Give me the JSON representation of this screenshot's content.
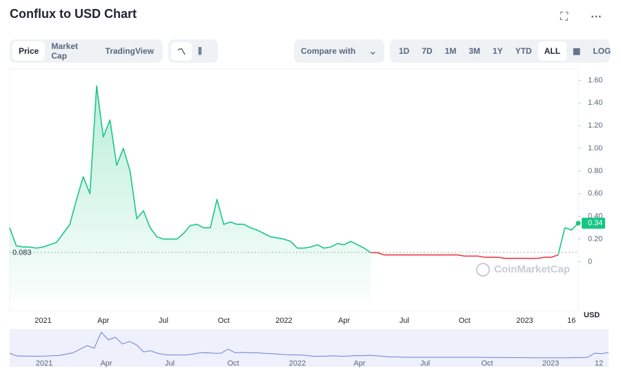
{
  "header": {
    "title": "Conflux to USD Chart"
  },
  "toolbar": {
    "views": [
      "Price",
      "Market Cap",
      "TradingView"
    ],
    "compare": "Compare with",
    "ranges": [
      "1D",
      "7D",
      "1M",
      "3M",
      "1Y",
      "YTD",
      "ALL"
    ],
    "log": "LOG"
  },
  "chart_data": {
    "type": "line",
    "categories": [
      null,
      null,
      null,
      null,
      null,
      "2021",
      null,
      null,
      null,
      null,
      null,
      null,
      null,
      null,
      "Apr",
      null,
      null,
      null,
      null,
      null,
      null,
      null,
      null,
      "Jul",
      null,
      null,
      null,
      null,
      null,
      null,
      null,
      null,
      "Oct",
      null,
      null,
      null,
      null,
      null,
      null,
      null,
      null,
      "2022",
      null,
      null,
      null,
      null,
      null,
      null,
      null,
      null,
      "Apr",
      null,
      null,
      null,
      null,
      null,
      null,
      null,
      null,
      "Jul",
      null,
      null,
      null,
      null,
      null,
      null,
      null,
      null,
      "Oct",
      null,
      null,
      null,
      null,
      null,
      null,
      null,
      null,
      "2023",
      null,
      null,
      null,
      null,
      null,
      null,
      "16",
      null
    ],
    "series": [
      {
        "color": "#16c784",
        "values": [
          0.3,
          0.14,
          0.13,
          0.13,
          0.12,
          0.13,
          0.15,
          0.17,
          0.25,
          0.33,
          0.55,
          0.75,
          0.6,
          1.55,
          1.1,
          1.25,
          0.85,
          1.0,
          0.8,
          0.38,
          0.45,
          0.3,
          0.22,
          0.2,
          0.2,
          0.2,
          0.25,
          0.32,
          0.33,
          0.3,
          0.3,
          0.55,
          0.33,
          0.35,
          0.33,
          0.33,
          0.3,
          0.28,
          0.25,
          0.22,
          0.21,
          0.2,
          0.18,
          0.12,
          0.12,
          0.13,
          0.15,
          0.12,
          0.13,
          0.16,
          0.15,
          0.18,
          0.15,
          0.12,
          0.08,
          null,
          null,
          null,
          null,
          null,
          null,
          null,
          null,
          null,
          null,
          null,
          null,
          null,
          null,
          null,
          null,
          null,
          null,
          null,
          null,
          null,
          null,
          null,
          null,
          null,
          null,
          null,
          0.06,
          0.3,
          0.28,
          0.34
        ]
      },
      {
        "color": "#ea3943",
        "values": [
          null,
          null,
          null,
          null,
          null,
          null,
          null,
          null,
          null,
          null,
          null,
          null,
          null,
          null,
          null,
          null,
          null,
          null,
          null,
          null,
          null,
          null,
          null,
          null,
          null,
          null,
          null,
          null,
          null,
          null,
          null,
          null,
          null,
          null,
          null,
          null,
          null,
          null,
          null,
          null,
          null,
          null,
          null,
          null,
          null,
          null,
          null,
          null,
          null,
          null,
          null,
          null,
          null,
          null,
          0.08,
          0.08,
          0.06,
          0.06,
          0.06,
          0.06,
          0.06,
          0.06,
          0.06,
          0.06,
          0.06,
          0.06,
          0.06,
          0.06,
          0.05,
          0.05,
          0.05,
          0.04,
          0.04,
          0.04,
          0.03,
          0.03,
          0.03,
          0.03,
          0.03,
          0.03,
          0.04,
          0.04,
          0.06,
          null,
          null,
          null
        ]
      }
    ],
    "ylim": [
      -0.35,
      1.7
    ],
    "yticks": [
      0,
      {
        "value": 0.2,
        "label": "0.20"
      },
      {
        "value": 0.4,
        "label": "0.40"
      },
      {
        "value": 0.6,
        "label": "0.60"
      },
      {
        "value": 0.8,
        "label": "0.80"
      },
      {
        "value": 1,
        "label": "1.00"
      },
      {
        "value": 1.2,
        "label": "1.20"
      },
      {
        "value": 1.4,
        "label": "1.40"
      },
      {
        "value": 1.6,
        "label": "1.60"
      }
    ],
    "reference_line": 0.083,
    "last_price": 0.34,
    "currency": "USD",
    "watermark": "CoinMarketCap",
    "navigator_labels": [
      "2021",
      "Apr",
      "Jul",
      "Oct",
      "2022",
      "Apr",
      "Jul",
      "Oct",
      "2023",
      "12"
    ]
  }
}
